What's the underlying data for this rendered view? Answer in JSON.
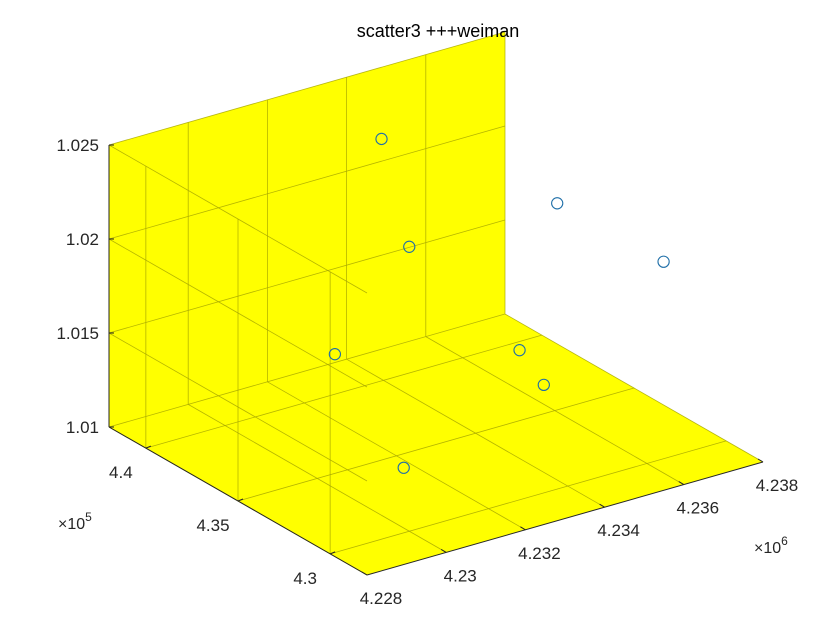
{
  "chart_data": {
    "type": "scatter3",
    "title": "scatter3 +++weiman",
    "xlabel": "",
    "ylabel": "",
    "zlabel": "",
    "x_axis": {
      "ticks": [
        4.228,
        4.23,
        4.232,
        4.234,
        4.236,
        4.238
      ],
      "tick_labels": [
        "4.228",
        "4.23",
        "4.232",
        "4.234",
        "4.236",
        "4.238"
      ],
      "lim": [
        4.228,
        4.238
      ],
      "multiplier_base": "×10",
      "multiplier_exp": "6"
    },
    "y_axis": {
      "ticks": [
        4.3,
        4.35,
        4.4
      ],
      "tick_labels": [
        "4.3",
        "4.35",
        "4.4"
      ],
      "lim": [
        4.28,
        4.42
      ],
      "multiplier_base": "×10",
      "multiplier_exp": "5"
    },
    "z_axis": {
      "ticks": [
        1.01,
        1.015,
        1.02,
        1.025
      ],
      "tick_labels": [
        "1.01",
        "1.015",
        "1.02",
        "1.025"
      ],
      "lim": [
        1.01,
        1.025
      ]
    },
    "grid": true,
    "marker": "circle-open",
    "colors": {
      "background": "#ffff00",
      "marker": "#1f6fa8",
      "grid": "#a8a800",
      "axis": "#262626"
    },
    "points": [
      {
        "x": 4.2341,
        "y": 4.4032,
        "z": 1.0226
      },
      {
        "x": 4.233,
        "y": 4.3645,
        "z": 1.0197
      },
      {
        "x": 4.236,
        "y": 4.3487,
        "z": 1.0211
      },
      {
        "x": 4.2379,
        "y": 4.3318,
        "z": 1.0178
      },
      {
        "x": 4.2308,
        "y": 4.3576,
        "z": 1.0157
      },
      {
        "x": 4.2332,
        "y": 4.2958,
        "z": 1.0161
      },
      {
        "x": 4.2337,
        "y": 4.3197,
        "z": 1.0163
      },
      {
        "x": 4.2305,
        "y": 4.3138,
        "z": 1.0123
      }
    ]
  }
}
